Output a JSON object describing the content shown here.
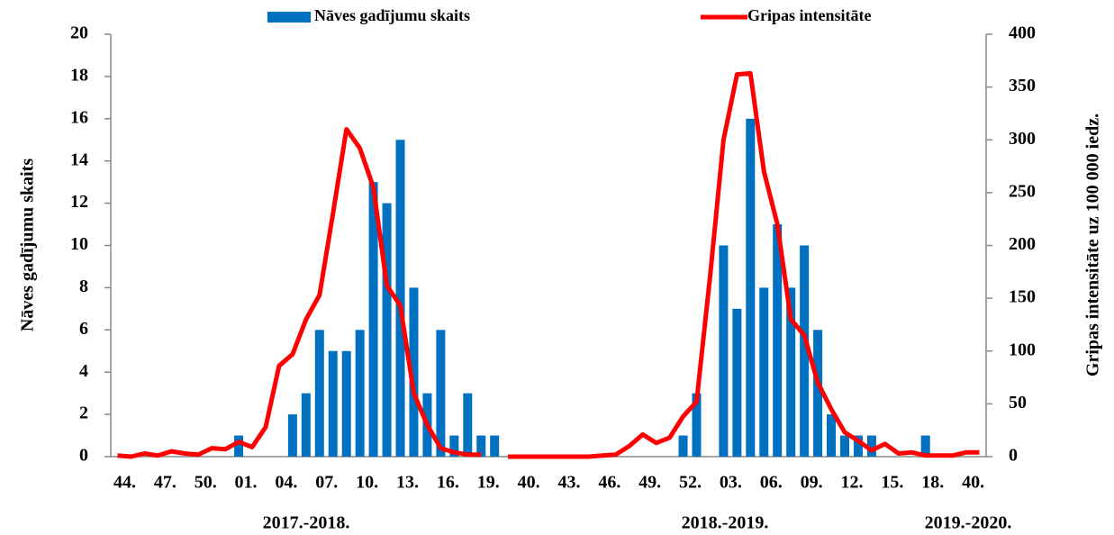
{
  "chart_data": {
    "type": "bar-line",
    "y_label": "Nāves gadījumu skaits",
    "y2_label": "Gripas intensitāte uz 100 000 iedz.",
    "categories": [
      "44.",
      null,
      null,
      "47.",
      null,
      null,
      "50.",
      null,
      null,
      "01.",
      null,
      null,
      "04.",
      null,
      null,
      "07.",
      null,
      null,
      "10.",
      null,
      null,
      "13.",
      null,
      null,
      "16.",
      null,
      null,
      "19.",
      null,
      null,
      "40.",
      null,
      null,
      "43.",
      null,
      null,
      "46.",
      null,
      null,
      "49.",
      null,
      null,
      "52.",
      null,
      null,
      "03.",
      null,
      null,
      "06.",
      null,
      null,
      "09.",
      null,
      null,
      "12.",
      null,
      null,
      "15.",
      null,
      null,
      "18.",
      null,
      null,
      "40.",
      null
    ],
    "season_labels": [
      "2017.-2018.",
      "2018.-2019.",
      "2019.-2020."
    ],
    "series": [
      {
        "name": "Nāves gadījumu skaits",
        "type": "bar",
        "color": "#0070c0",
        "values": [
          0,
          0,
          0,
          0,
          0,
          0,
          0,
          0,
          0,
          1,
          0,
          0,
          0,
          2,
          3,
          6,
          5,
          5,
          6,
          13,
          12,
          15,
          8,
          3,
          6,
          1,
          3,
          1,
          1,
          0,
          0,
          0,
          0,
          0,
          0,
          0,
          0,
          0,
          0,
          0,
          0,
          0,
          1,
          3,
          0,
          10,
          7,
          16,
          8,
          11,
          8,
          10,
          6,
          2,
          1,
          1,
          1,
          0,
          0,
          0,
          1,
          0,
          0,
          0,
          0
        ]
      },
      {
        "name": "Gripas intensitāte",
        "type": "line",
        "axis": "y2",
        "color": "#ff0000",
        "values": [
          1,
          0,
          3,
          1,
          5,
          3,
          2,
          8,
          7,
          14,
          9,
          28,
          86,
          97,
          130,
          153,
          230,
          310,
          292,
          255,
          162,
          143,
          60,
          30,
          8,
          4,
          2,
          2,
          null,
          0,
          0,
          0,
          0,
          0,
          0,
          0,
          1,
          2,
          10,
          21,
          13,
          18,
          38,
          52,
          170,
          300,
          362,
          363,
          270,
          220,
          130,
          115,
          70,
          45,
          23,
          15,
          6,
          12,
          3,
          4,
          1,
          1,
          1,
          4,
          4
        ]
      }
    ],
    "ylim": [
      0,
      20
    ],
    "yticks": [
      0,
      2,
      4,
      6,
      8,
      10,
      12,
      14,
      16,
      18,
      20
    ],
    "y2lim": [
      0,
      400
    ],
    "y2ticks": [
      0,
      50,
      100,
      150,
      200,
      250,
      300,
      350,
      400
    ],
    "legend": "top",
    "grid": false
  }
}
